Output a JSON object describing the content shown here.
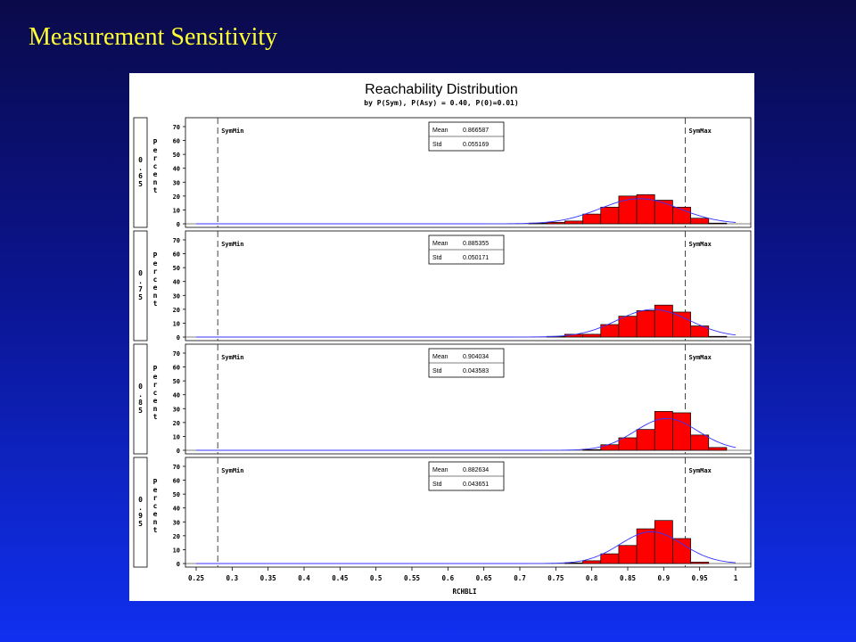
{
  "slide": {
    "title": "Measurement  Sensitivity"
  },
  "chart_data": {
    "type": "bar",
    "title": "Reachability Distribution",
    "subtitle": "by P(Sym), P(Asy) = 0.40, P(0)=0.01)",
    "xlabel": "RCHBLI",
    "ylabel": "Percent",
    "xlim": [
      0.25,
      1.0
    ],
    "ylim": [
      0,
      70
    ],
    "x_ticks": [
      "0.25",
      "0.3",
      "0.35",
      "0.4",
      "0.45",
      "0.5",
      "0.55",
      "0.6",
      "0.65",
      "0.7",
      "0.75",
      "0.8",
      "0.85",
      "0.9",
      "0.95",
      "1"
    ],
    "y_ticks": [
      "0",
      "10",
      "20",
      "30",
      "40",
      "50",
      "60",
      "70"
    ],
    "bin_width": 0.025,
    "ref_lines": [
      {
        "label": "SymMin",
        "x": 0.28
      },
      {
        "label": "SymMax",
        "x": 0.93
      }
    ],
    "stat_labels": {
      "mean": "Mean",
      "std": "Std"
    },
    "bar_color": "#ff0000",
    "curve_color": "#3333ff",
    "panels": [
      {
        "name": "0.65",
        "mean": "0.866587",
        "std": "0.055169",
        "mean_value": 0.866587,
        "std_value": 0.055169,
        "bins": [
          {
            "x": 0.725,
            "value": 0.5
          },
          {
            "x": 0.75,
            "value": 1
          },
          {
            "x": 0.775,
            "value": 2
          },
          {
            "x": 0.8,
            "value": 7
          },
          {
            "x": 0.825,
            "value": 12
          },
          {
            "x": 0.85,
            "value": 20
          },
          {
            "x": 0.875,
            "value": 21
          },
          {
            "x": 0.9,
            "value": 17
          },
          {
            "x": 0.925,
            "value": 12
          },
          {
            "x": 0.95,
            "value": 4
          },
          {
            "x": 0.975,
            "value": 0.5
          }
        ]
      },
      {
        "name": "0.75",
        "mean": "0.885355",
        "std": "0.050171",
        "mean_value": 0.885355,
        "std_value": 0.050171,
        "bins": [
          {
            "x": 0.75,
            "value": 0.5
          },
          {
            "x": 0.775,
            "value": 2
          },
          {
            "x": 0.8,
            "value": 2
          },
          {
            "x": 0.825,
            "value": 9
          },
          {
            "x": 0.85,
            "value": 15
          },
          {
            "x": 0.875,
            "value": 19
          },
          {
            "x": 0.9,
            "value": 23
          },
          {
            "x": 0.925,
            "value": 18
          },
          {
            "x": 0.95,
            "value": 8
          },
          {
            "x": 0.975,
            "value": 0.5
          }
        ]
      },
      {
        "name": "0.85",
        "mean": "0.904034",
        "std": "0.043583",
        "mean_value": 0.904034,
        "std_value": 0.043583,
        "bins": [
          {
            "x": 0.8,
            "value": 0.5
          },
          {
            "x": 0.825,
            "value": 4
          },
          {
            "x": 0.85,
            "value": 9
          },
          {
            "x": 0.875,
            "value": 15
          },
          {
            "x": 0.9,
            "value": 28
          },
          {
            "x": 0.925,
            "value": 27
          },
          {
            "x": 0.95,
            "value": 11
          },
          {
            "x": 0.975,
            "value": 2
          }
        ]
      },
      {
        "name": "0.95",
        "mean": "0.882634",
        "std": "0.043651",
        "mean_value": 0.882634,
        "std_value": 0.043651,
        "bins": [
          {
            "x": 0.775,
            "value": 0.5
          },
          {
            "x": 0.8,
            "value": 2
          },
          {
            "x": 0.825,
            "value": 7
          },
          {
            "x": 0.85,
            "value": 13
          },
          {
            "x": 0.875,
            "value": 25
          },
          {
            "x": 0.9,
            "value": 31
          },
          {
            "x": 0.925,
            "value": 18
          },
          {
            "x": 0.95,
            "value": 1
          }
        ]
      }
    ]
  }
}
